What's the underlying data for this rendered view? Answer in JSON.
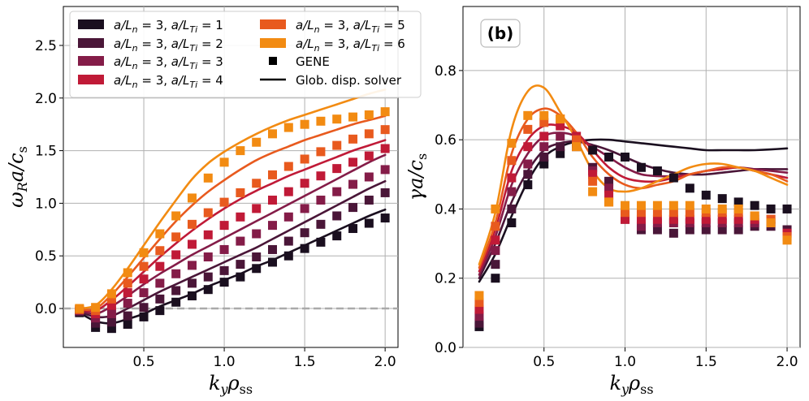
{
  "colors": [
    "#1a0f1f",
    "#4a1638",
    "#841c48",
    "#c01a37",
    "#e85a1e",
    "#f28b12"
  ],
  "chart_data": [
    {
      "type": "scatter+line",
      "panel_label": "",
      "xlabel": "k_y ρ_ss",
      "ylabel": "ω_R a / c_s",
      "xlim": [
        0.0,
        2.08
      ],
      "ylim": [
        -0.37,
        2.87
      ],
      "xticks": [
        "0.5",
        "1.0",
        "1.5",
        "2.0"
      ],
      "xtick_values": [
        0.5,
        1.0,
        1.5,
        2.0
      ],
      "yticks": [
        "0.0",
        "0.5",
        "1.0",
        "1.5",
        "2.0",
        "2.5"
      ],
      "ytick_values": [
        0.0,
        0.5,
        1.0,
        1.5,
        2.0,
        2.5
      ],
      "reference_line": 0.0,
      "x": [
        0.1,
        0.2,
        0.3,
        0.4,
        0.5,
        0.6,
        0.7,
        0.8,
        0.9,
        1.0,
        1.1,
        1.2,
        1.3,
        1.4,
        1.5,
        1.6,
        1.7,
        1.8,
        1.9,
        2.0
      ],
      "line_x": [
        0.1,
        0.2,
        0.3,
        0.4,
        0.5,
        0.6,
        0.7,
        0.8,
        0.9,
        1.0,
        1.1,
        1.2,
        1.3,
        1.4,
        1.5,
        1.6,
        1.7,
        1.8,
        1.9,
        2.0
      ],
      "series": [
        {
          "name": "a/L_n = 3, a/L_Ti = 1",
          "gene": [
            -0.04,
            -0.18,
            -0.19,
            -0.15,
            -0.08,
            -0.02,
            0.06,
            0.12,
            0.18,
            0.25,
            0.3,
            0.38,
            0.44,
            0.5,
            0.57,
            0.63,
            0.69,
            0.76,
            0.81,
            0.86
          ],
          "solver": [
            -0.04,
            -0.12,
            -0.14,
            -0.1,
            -0.05,
            0.02,
            0.08,
            0.14,
            0.21,
            0.27,
            0.33,
            0.4,
            0.46,
            0.53,
            0.6,
            0.67,
            0.74,
            0.81,
            0.88,
            0.94
          ]
        },
        {
          "name": "a/L_n = 3, a/L_Ti = 2",
          "gene": [
            -0.03,
            -0.14,
            -0.13,
            -0.07,
            0.01,
            0.09,
            0.17,
            0.24,
            0.3,
            0.36,
            0.42,
            0.49,
            0.56,
            0.64,
            0.72,
            0.8,
            0.88,
            0.96,
            1.03,
            1.1
          ],
          "solver": [
            -0.03,
            -0.08,
            -0.07,
            0.0,
            0.08,
            0.16,
            0.23,
            0.3,
            0.37,
            0.44,
            0.51,
            0.58,
            0.66,
            0.74,
            0.82,
            0.9,
            0.98,
            1.06,
            1.14,
            1.21
          ]
        },
        {
          "name": "a/L_n = 3, a/L_Ti = 3",
          "gene": [
            -0.02,
            -0.09,
            -0.05,
            0.05,
            0.15,
            0.24,
            0.33,
            0.41,
            0.49,
            0.56,
            0.64,
            0.71,
            0.79,
            0.87,
            0.95,
            1.03,
            1.11,
            1.18,
            1.25,
            1.32
          ],
          "solver": [
            -0.02,
            -0.05,
            0.02,
            0.12,
            0.23,
            0.33,
            0.42,
            0.51,
            0.59,
            0.67,
            0.75,
            0.83,
            0.91,
            0.99,
            1.07,
            1.15,
            1.23,
            1.31,
            1.39,
            1.46
          ]
        },
        {
          "name": "a/L_n = 3, a/L_Ti = 4",
          "gene": [
            -0.01,
            -0.05,
            0.03,
            0.15,
            0.28,
            0.4,
            0.51,
            0.61,
            0.7,
            0.79,
            0.87,
            0.95,
            1.03,
            1.11,
            1.19,
            1.26,
            1.33,
            1.39,
            1.45,
            1.52
          ],
          "solver": [
            -0.01,
            -0.02,
            0.08,
            0.21,
            0.35,
            0.49,
            0.62,
            0.74,
            0.85,
            0.95,
            1.04,
            1.12,
            1.19,
            1.26,
            1.32,
            1.38,
            1.44,
            1.5,
            1.55,
            1.6
          ]
        },
        {
          "name": "a/L_n = 3, a/L_Ti = 5",
          "gene": [
            -0.01,
            -0.02,
            0.09,
            0.24,
            0.4,
            0.55,
            0.68,
            0.8,
            0.91,
            1.01,
            1.1,
            1.19,
            1.27,
            1.35,
            1.42,
            1.49,
            1.55,
            1.61,
            1.66,
            1.7
          ],
          "solver": [
            -0.01,
            0.0,
            0.13,
            0.3,
            0.48,
            0.66,
            0.83,
            0.98,
            1.11,
            1.22,
            1.32,
            1.41,
            1.48,
            1.54,
            1.6,
            1.65,
            1.7,
            1.75,
            1.79,
            1.83
          ]
        },
        {
          "name": "a/L_n = 3, a/L_Ti = 6",
          "gene": [
            0.0,
            0.01,
            0.14,
            0.34,
            0.53,
            0.71,
            0.88,
            1.05,
            1.24,
            1.39,
            1.5,
            1.58,
            1.66,
            1.72,
            1.75,
            1.78,
            1.8,
            1.82,
            1.84,
            1.87
          ],
          "solver": [
            0.0,
            0.03,
            0.18,
            0.38,
            0.6,
            0.82,
            1.03,
            1.23,
            1.38,
            1.49,
            1.58,
            1.66,
            1.73,
            1.79,
            1.84,
            1.89,
            1.94,
            1.99,
            2.04,
            2.08
          ]
        }
      ],
      "legend": {
        "placement": "top",
        "entries": [
          "a/L_n = 3, a/L_Ti = 1",
          "a/L_n = 3, a/L_Ti = 2",
          "a/L_n = 3, a/L_Ti = 3",
          "a/L_n = 3, a/L_Ti = 4",
          "a/L_n = 3, a/L_Ti = 5",
          "a/L_n = 3, a/L_Ti = 6",
          "GENE",
          "Glob. disp. solver"
        ]
      },
      "grid": true
    },
    {
      "type": "scatter+line",
      "panel_label": "(b)",
      "xlabel": "k_y ρ_ss",
      "ylabel": "γ a / c_s",
      "xlim": [
        0.0,
        2.08
      ],
      "ylim": [
        0.0,
        0.985
      ],
      "xticks": [
        "0.5",
        "1.0",
        "1.5",
        "2.0"
      ],
      "xtick_values": [
        0.5,
        1.0,
        1.5,
        2.0
      ],
      "yticks": [
        "0.0",
        "0.2",
        "0.4",
        "0.6",
        "0.8"
      ],
      "ytick_values": [
        0.0,
        0.2,
        0.4,
        0.6,
        0.8
      ],
      "x": [
        0.1,
        0.2,
        0.3,
        0.4,
        0.5,
        0.6,
        0.7,
        0.8,
        0.9,
        1.0,
        1.1,
        1.2,
        1.3,
        1.4,
        1.5,
        1.6,
        1.7,
        1.8,
        1.9,
        2.0
      ],
      "line_x": [
        0.1,
        0.2,
        0.3,
        0.4,
        0.5,
        0.6,
        0.7,
        0.8,
        0.9,
        1.0,
        1.1,
        1.2,
        1.3,
        1.4,
        1.5,
        1.6,
        1.7,
        1.8,
        1.9,
        2.0
      ],
      "series": [
        {
          "name": "a/L_n = 3, a/L_Ti = 1",
          "gene": [
            0.06,
            0.2,
            0.36,
            0.47,
            0.53,
            0.56,
            0.59,
            0.57,
            0.55,
            0.55,
            0.52,
            0.51,
            0.49,
            0.46,
            0.44,
            0.43,
            0.42,
            0.41,
            0.4,
            0.4
          ],
          "solver": [
            0.19,
            0.27,
            0.38,
            0.48,
            0.55,
            0.58,
            0.595,
            0.6,
            0.6,
            0.595,
            0.59,
            0.585,
            0.58,
            0.575,
            0.57,
            0.57,
            0.57,
            0.57,
            0.572,
            0.575
          ]
        },
        {
          "name": "a/L_n = 3, a/L_Ti = 2",
          "gene": [
            0.07,
            0.24,
            0.4,
            0.5,
            0.55,
            0.58,
            0.58,
            0.52,
            0.48,
            0.38,
            0.34,
            0.34,
            0.33,
            0.34,
            0.34,
            0.34,
            0.34,
            0.35,
            0.35,
            0.34
          ],
          "solver": [
            0.2,
            0.3,
            0.42,
            0.51,
            0.57,
            0.59,
            0.595,
            0.585,
            0.57,
            0.55,
            0.53,
            0.515,
            0.505,
            0.5,
            0.5,
            0.505,
            0.51,
            0.515,
            0.515,
            0.515
          ]
        },
        {
          "name": "a/L_n = 3, a/L_Ti = 3",
          "gene": [
            0.09,
            0.28,
            0.45,
            0.53,
            0.58,
            0.61,
            0.6,
            0.51,
            0.46,
            0.37,
            0.35,
            0.36,
            0.36,
            0.36,
            0.36,
            0.36,
            0.36,
            0.36,
            0.36,
            0.33
          ],
          "solver": [
            0.21,
            0.32,
            0.47,
            0.56,
            0.61,
            0.62,
            0.61,
            0.58,
            0.55,
            0.52,
            0.5,
            0.495,
            0.495,
            0.5,
            0.51,
            0.515,
            0.52,
            0.515,
            0.51,
            0.505
          ]
        },
        {
          "name": "a/L_n = 3, a/L_Ti = 4",
          "gene": [
            0.11,
            0.31,
            0.49,
            0.58,
            0.61,
            0.64,
            0.61,
            0.5,
            0.44,
            0.37,
            0.37,
            0.37,
            0.37,
            0.37,
            0.37,
            0.37,
            0.37,
            0.37,
            0.37,
            0.33
          ],
          "solver": [
            0.22,
            0.34,
            0.51,
            0.6,
            0.64,
            0.64,
            0.62,
            0.57,
            0.52,
            0.49,
            0.48,
            0.48,
            0.49,
            0.5,
            0.51,
            0.515,
            0.52,
            0.51,
            0.5,
            0.49
          ]
        },
        {
          "name": "a/L_n = 3, a/L_Ti = 5",
          "gene": [
            0.13,
            0.35,
            0.54,
            0.63,
            0.65,
            0.66,
            0.6,
            0.48,
            0.42,
            0.39,
            0.39,
            0.39,
            0.39,
            0.39,
            0.39,
            0.39,
            0.39,
            0.38,
            0.37,
            0.32
          ],
          "solver": [
            0.23,
            0.36,
            0.56,
            0.66,
            0.69,
            0.67,
            0.62,
            0.55,
            0.5,
            0.47,
            0.46,
            0.47,
            0.48,
            0.5,
            0.51,
            0.52,
            0.52,
            0.51,
            0.5,
            0.48
          ]
        },
        {
          "name": "a/L_n = 3, a/L_Ti = 6",
          "gene": [
            0.15,
            0.4,
            0.59,
            0.67,
            0.67,
            0.66,
            0.58,
            0.45,
            0.42,
            0.41,
            0.41,
            0.41,
            0.41,
            0.41,
            0.4,
            0.4,
            0.4,
            0.38,
            0.36,
            0.31
          ],
          "solver": [
            0.24,
            0.39,
            0.63,
            0.74,
            0.75,
            0.68,
            0.6,
            0.51,
            0.46,
            0.45,
            0.46,
            0.48,
            0.5,
            0.52,
            0.53,
            0.53,
            0.52,
            0.51,
            0.49,
            0.47
          ]
        }
      ],
      "grid": true
    }
  ]
}
